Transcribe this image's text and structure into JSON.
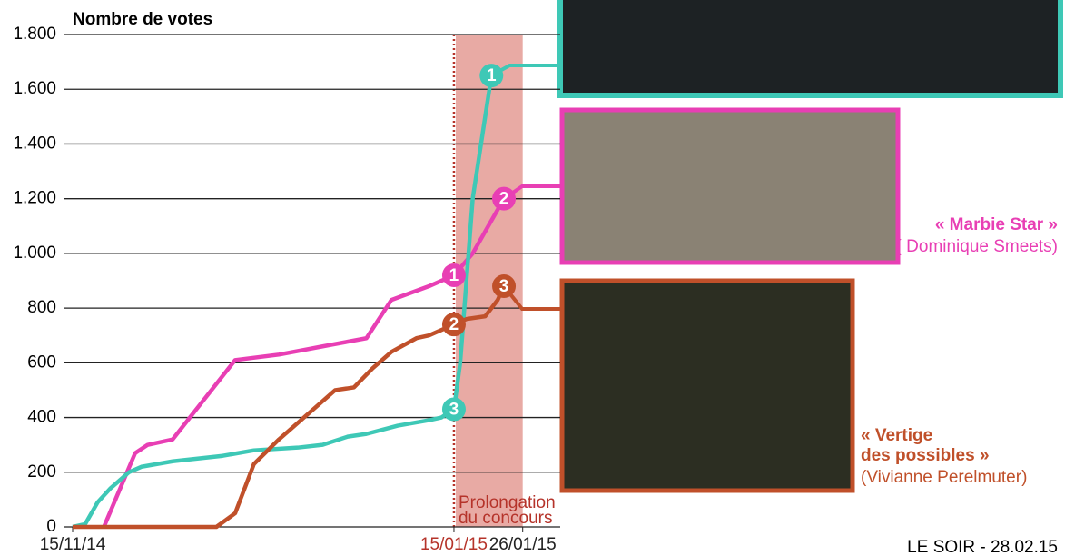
{
  "chart_data": {
    "type": "line",
    "y_axis_label": "Nombre de votes",
    "source": "LE SOIR - 28.02.15",
    "xlim": [
      "2014-11-15",
      "2015-02-01"
    ],
    "xticks": [
      {
        "value": "2014-11-15",
        "label": "15/11/14"
      },
      {
        "value": "2015-01-15",
        "label": "15/01/15"
      },
      {
        "value": "2015-01-26",
        "label": "26/01/15"
      }
    ],
    "ylim": [
      0,
      1800
    ],
    "yticks": [
      0,
      200,
      400,
      600,
      800,
      {
        "value": 1000,
        "label": "1.000"
      },
      {
        "value": 1200,
        "label": "1.200"
      },
      {
        "value": 1400,
        "label": "1.400"
      },
      {
        "value": 1600,
        "label": "1.600"
      },
      {
        "value": 1800,
        "label": "1.800"
      }
    ],
    "grid": true,
    "highlight": {
      "from": "2015-01-15",
      "to": "2015-01-26",
      "label_lines": [
        "Prolongation",
        "du concours"
      ],
      "color": "#b5332a",
      "fill": "#e8aaa4"
    },
    "series": [
      {
        "name_lines": [
          "« Marbie Star »"
        ],
        "director": "( Dominique Smeets)",
        "color": "#e83fb4",
        "x": [
          "2014-11-20",
          "2014-11-25",
          "2014-11-27",
          "2014-12-01",
          "2014-12-11",
          "2014-12-18",
          "2014-12-25",
          "2015-01-01",
          "2015-01-05",
          "2015-01-11",
          "2015-01-15",
          "2015-01-18",
          "2015-01-20",
          "2015-01-23"
        ],
        "values": [
          0,
          270,
          300,
          320,
          610,
          630,
          660,
          690,
          830,
          880,
          920,
          1000,
          1080,
          1200
        ],
        "rank_labels": [
          {
            "x": "2015-01-15",
            "label": "1"
          },
          {
            "x": "2015-01-23",
            "label": "2"
          }
        ]
      },
      {
        "color": "#3ec8b6",
        "x": [
          "2014-11-15",
          "2014-11-17",
          "2014-11-19",
          "2014-11-21",
          "2014-11-24",
          "2014-11-26",
          "2014-12-01",
          "2014-12-09",
          "2014-12-14",
          "2014-12-21",
          "2014-12-25",
          "2014-12-29",
          "2015-01-01",
          "2015-01-06",
          "2015-01-11",
          "2015-01-13",
          "2015-01-15",
          "2015-01-16",
          "2015-01-17",
          "2015-01-18",
          "2015-01-20",
          "2015-01-21"
        ],
        "values": [
          0,
          10,
          90,
          140,
          200,
          220,
          240,
          260,
          280,
          290,
          300,
          330,
          340,
          370,
          390,
          400,
          430,
          600,
          900,
          1200,
          1500,
          1650
        ],
        "rank_labels": [
          {
            "x": "2015-01-15",
            "label": "3"
          },
          {
            "x": "2015-01-21",
            "label": "1"
          }
        ]
      },
      {
        "name_lines": [
          "« Vertige",
          "des possibles »"
        ],
        "director": "(Vivianne Perelmuter)",
        "color": "#c0502a",
        "x": [
          "2014-11-15",
          "2014-12-08",
          "2014-12-11",
          "2014-12-14",
          "2014-12-18",
          "2014-12-23",
          "2014-12-27",
          "2014-12-30",
          "2015-01-02",
          "2015-01-05",
          "2015-01-09",
          "2015-01-11",
          "2015-01-13",
          "2015-01-15",
          "2015-01-17",
          "2015-01-20",
          "2015-01-22",
          "2015-01-23"
        ],
        "values": [
          0,
          0,
          50,
          230,
          320,
          420,
          500,
          510,
          580,
          640,
          690,
          700,
          720,
          740,
          760,
          770,
          830,
          880
        ],
        "rank_labels": [
          {
            "x": "2015-01-15",
            "label": "2"
          },
          {
            "x": "2015-01-23",
            "label": "3"
          }
        ]
      }
    ]
  }
}
